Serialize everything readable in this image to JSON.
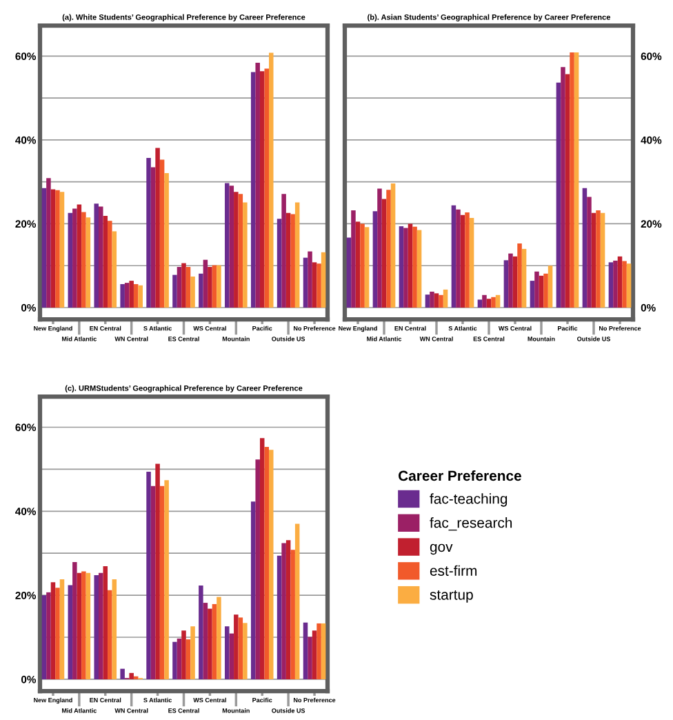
{
  "chart_data": [
    {
      "type": "bar",
      "title": "(a). White Students’ Geographical Preference by Career Preference",
      "categories": [
        "New England",
        "Mid Atlantic",
        "EN Central",
        "WN Central",
        "S Atlantic",
        "ES Central",
        "WS Central",
        "Mountain",
        "Pacific",
        "Outside US",
        "No Preference"
      ],
      "series": [
        {
          "name": "fac-teaching",
          "color": "#6a2c8f",
          "values": [
            28.5,
            22.6,
            24.8,
            5.6,
            35.7,
            7.8,
            8.1,
            29.7,
            56.2,
            21.2,
            11.9
          ]
        },
        {
          "name": "fac_research",
          "color": "#9b2065",
          "values": [
            30.9,
            23.6,
            24.1,
            5.9,
            33.5,
            9.7,
            11.4,
            29.1,
            58.4,
            27.1,
            13.4
          ]
        },
        {
          "name": "gov",
          "color": "#c1202f",
          "values": [
            28.2,
            24.6,
            21.9,
            6.4,
            38.1,
            10.6,
            9.7,
            27.6,
            56.4,
            22.6,
            10.8
          ]
        },
        {
          "name": "est-firm",
          "color": "#f15a2b",
          "values": [
            28.0,
            22.8,
            20.7,
            5.6,
            35.3,
            9.7,
            10.1,
            27.1,
            57.0,
            22.3,
            10.5
          ]
        },
        {
          "name": "startup",
          "color": "#fbad42",
          "values": [
            27.6,
            21.5,
            18.2,
            5.3,
            32.1,
            7.4,
            10.1,
            25.1,
            60.8,
            25.1,
            13.2
          ]
        }
      ],
      "ylim": [
        -2.8,
        67.3
      ],
      "yticks": [
        {
          "value": 0,
          "label": "0%"
        },
        {
          "value": 10,
          "label": null
        },
        {
          "value": 20,
          "label": "20%"
        },
        {
          "value": 30,
          "label": null
        },
        {
          "value": 40,
          "label": "40%"
        },
        {
          "value": 50,
          "label": null
        },
        {
          "value": 60,
          "label": "60%"
        }
      ],
      "grid": "y",
      "legend": "bottom right",
      "legend_title": "Career Preference"
    },
    {
      "type": "bar",
      "title": "(b). Asian Students’ Geographical Preference by Career Preference",
      "categories": [
        "New England",
        "Mid Atlantic",
        "EN Central",
        "WN Central",
        "S Atlantic",
        "ES Central",
        "WS Central",
        "Mountain",
        "Pacific",
        "Outside US",
        "No Preference"
      ],
      "series": [
        {
          "color": "#6a2c8f",
          "values": [
            16.7,
            23.0,
            19.4,
            3.1,
            24.4,
            1.9,
            11.3,
            6.4,
            53.7,
            28.5,
            10.8
          ]
        },
        {
          "color": "#9b2065",
          "values": [
            23.2,
            28.4,
            19.0,
            3.8,
            23.4,
            3.0,
            12.9,
            8.6,
            57.4,
            26.4,
            11.2
          ]
        },
        {
          "color": "#c1202f",
          "values": [
            20.5,
            25.9,
            20.0,
            3.4,
            22.1,
            2.1,
            12.2,
            7.6,
            55.7,
            22.6,
            12.2
          ]
        },
        {
          "color": "#f15a2b",
          "values": [
            20.0,
            28.1,
            19.3,
            3.0,
            22.7,
            2.5,
            15.3,
            8.1,
            60.9,
            23.2,
            11.1
          ]
        },
        {
          "color": "#fbad42",
          "values": [
            19.2,
            29.6,
            18.5,
            4.3,
            21.4,
            3.0,
            14.0,
            10.0,
            60.9,
            22.6,
            10.5
          ]
        }
      ],
      "ylim": [
        -2.8,
        67.3
      ],
      "yticks": [
        {
          "value": 0,
          "label": "0%"
        },
        {
          "value": 10,
          "label": null
        },
        {
          "value": 20,
          "label": "20%"
        },
        {
          "value": 30,
          "label": null
        },
        {
          "value": 40,
          "label": "40%"
        },
        {
          "value": 50,
          "label": null
        },
        {
          "value": 60,
          "label": "60%"
        }
      ],
      "grid": "y"
    },
    {
      "type": "bar",
      "title": "(c). URMStudents’ Geographical Preference by Career Preference",
      "categories": [
        "New England",
        "Mid Atlantic",
        "EN Central",
        "WN Central",
        "S Atlantic",
        "ES Central",
        "WS Central",
        "Mountain",
        "Pacific",
        "Outside US",
        "No Preference"
      ],
      "series": [
        {
          "color": "#6a2c8f",
          "values": [
            20.0,
            22.4,
            24.8,
            2.5,
            49.4,
            8.9,
            22.3,
            12.6,
            42.3,
            29.4,
            13.5
          ]
        },
        {
          "color": "#9b2065",
          "values": [
            20.7,
            27.9,
            25.3,
            0.3,
            46.0,
            9.7,
            18.2,
            10.9,
            52.3,
            32.4,
            10.1
          ]
        },
        {
          "color": "#c1202f",
          "values": [
            23.1,
            25.3,
            26.9,
            1.5,
            51.3,
            11.6,
            16.8,
            15.4,
            57.4,
            33.1,
            11.6
          ]
        },
        {
          "color": "#f15a2b",
          "values": [
            21.8,
            25.7,
            21.2,
            0.7,
            46.0,
            9.5,
            17.9,
            14.7,
            55.3,
            30.8,
            13.3
          ]
        },
        {
          "color": "#fbad42",
          "values": [
            23.8,
            25.3,
            23.8,
            0.3,
            47.4,
            12.6,
            19.6,
            13.4,
            54.6,
            37.0,
            13.3
          ]
        }
      ],
      "ylim": [
        -2.8,
        67.3
      ],
      "yticks": [
        {
          "value": 0,
          "label": "0%"
        },
        {
          "value": 10,
          "label": null
        },
        {
          "value": 20,
          "label": "20%"
        },
        {
          "value": 30,
          "label": null
        },
        {
          "value": 40,
          "label": "40%"
        },
        {
          "value": 50,
          "label": null
        },
        {
          "value": 60,
          "label": "60%"
        }
      ],
      "grid": "y"
    }
  ]
}
